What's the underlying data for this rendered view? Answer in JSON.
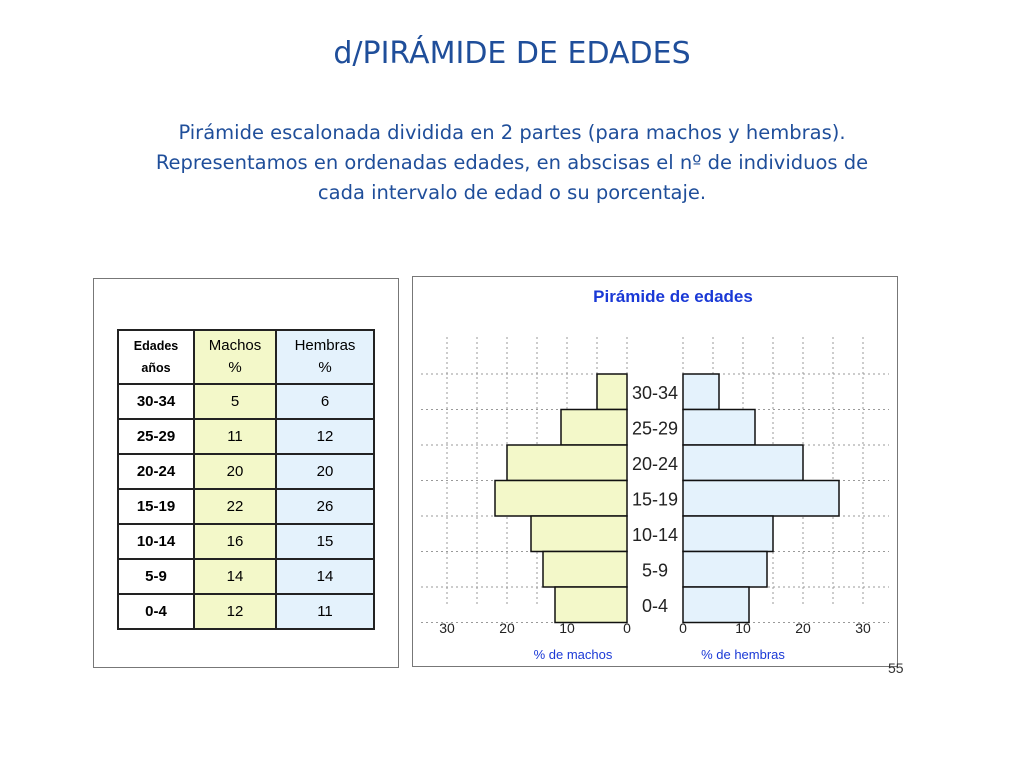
{
  "slide": {
    "title": "d/PIRÁMIDE DE EDADES",
    "body_lines": [
      "Pirámide escalonada dividida en 2 partes (para machos y hembras).",
      "Representamos en ordenadas edades, en abscisas el nº de individuos de",
      "cada intervalo de edad o su porcentaje."
    ],
    "page_number": "55"
  },
  "table": {
    "header": {
      "age_line1": "Edades",
      "age_line2": "años",
      "machos_line1": "Machos",
      "machos_line2": "%",
      "hembras_line1": "Hembras",
      "hembras_line2": "%"
    },
    "rows": [
      {
        "age": "30-34",
        "machos": "5",
        "hembras": "6"
      },
      {
        "age": "25-29",
        "machos": "11",
        "hembras": "12"
      },
      {
        "age": "20-24",
        "machos": "20",
        "hembras": "20"
      },
      {
        "age": "15-19",
        "machos": "22",
        "hembras": "26"
      },
      {
        "age": "10-14",
        "machos": "16",
        "hembras": "15"
      },
      {
        "age": "5-9",
        "machos": "14",
        "hembras": "14"
      },
      {
        "age": "0-4",
        "machos": "12",
        "hembras": "11"
      }
    ]
  },
  "chart_data": {
    "type": "bar",
    "title": "Pirámide de edades",
    "categories": [
      "30-34",
      "25-29",
      "20-24",
      "15-19",
      "10-14",
      "5-9",
      "0-4"
    ],
    "series": [
      {
        "name": "% de machos",
        "values": [
          5,
          11,
          20,
          22,
          16,
          14,
          12
        ]
      },
      {
        "name": "% de hembras",
        "values": [
          6,
          12,
          20,
          26,
          15,
          14,
          11
        ]
      }
    ],
    "xlabel_left": "% de machos",
    "xlabel_right": "% de hembras",
    "x_ticks_left": [
      "30",
      "20",
      "10",
      "0"
    ],
    "x_ticks_right": [
      "0",
      "10",
      "20",
      "30"
    ],
    "xlim": [
      0,
      30
    ],
    "grid": true,
    "colors": {
      "machos": "#f3f8c9",
      "hembras": "#e4f2fc",
      "text_blue": "#1f4e9a",
      "title_blue": "#1a39d6"
    }
  }
}
